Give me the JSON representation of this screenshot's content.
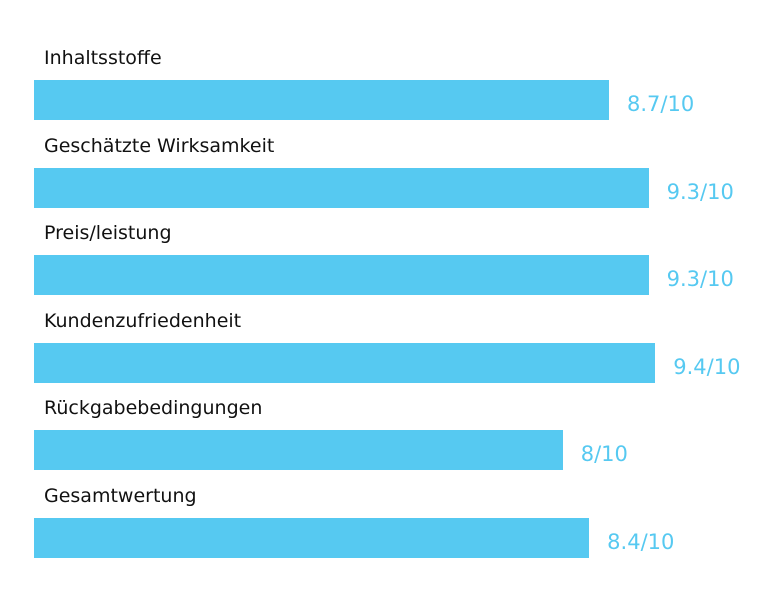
{
  "chart_data": {
    "type": "bar",
    "orientation": "horizontal",
    "categories": [
      "Inhaltsstoffe",
      "Geschätzte Wirksamkeit",
      "Preis/leistung",
      "Kundenzufriedenheit",
      "Rückgabebedingungen",
      "Gesamtwertung"
    ],
    "values": [
      8.7,
      9.3,
      9.3,
      9.4,
      8,
      8.4
    ],
    "value_labels": [
      "8.7/10",
      "9.3/10",
      "9.3/10",
      "9.4/10",
      "8/10",
      "8.4/10"
    ],
    "xlim": [
      0,
      10
    ],
    "grid": false,
    "legend": "none",
    "title": "",
    "xlabel": "",
    "ylabel": ""
  },
  "colors": {
    "bar": "#56c9f1",
    "value_text": "#56c9f1",
    "label_text": "#111111",
    "background": "#ffffff"
  }
}
